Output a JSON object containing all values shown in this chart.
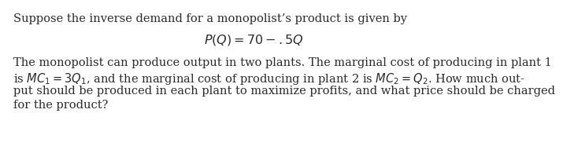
{
  "background_color": "#ffffff",
  "text_color": "#2b2b2b",
  "line1": "Suppose the inverse demand for a monopolist’s product is given by",
  "line3": "The monopolist can produce output in two plants. The marginal cost of producing in plant 1",
  "line4": "is $\\mathit{MC}_1 = 3\\mathit{Q}_1$, and the marginal cost of producing in plant 2 is $\\mathit{MC}_2 = \\mathit{Q}_2$. How much out-",
  "line5": "put should be produced in each plant to maximize profits, and what price should be charged",
  "line6": "for the product?",
  "equation": "$P(Q) = 70 - .5Q$",
  "font_size_body": 10.5,
  "font_size_eq": 11.5
}
